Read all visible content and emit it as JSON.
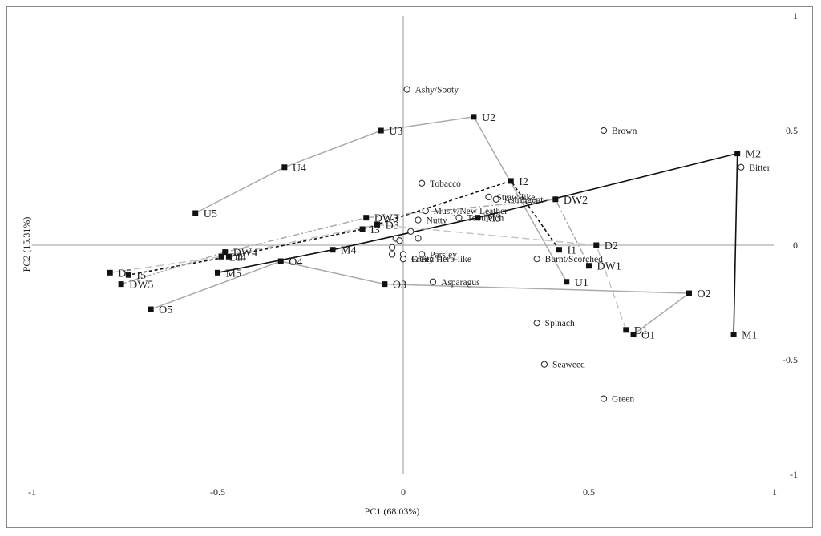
{
  "chart_data": {
    "type": "scatter",
    "title": "",
    "xlabel": "PC1 (68.03%)",
    "ylabel": "PC2 (15.31%)",
    "xlim": [
      -1,
      1
    ],
    "ylim": [
      -1,
      1
    ],
    "x_ticks": [
      "-1",
      "-0.5",
      "0",
      "0.5",
      "1"
    ],
    "y_ticks": [
      "1",
      "0.5",
      "0",
      "-0.5",
      "-1"
    ],
    "x_tick_values": [
      -1,
      -0.5,
      0,
      0.5,
      1
    ],
    "y_tick_values": [
      1,
      0.5,
      0,
      -0.5,
      -1
    ],
    "grid": false,
    "colors": {
      "axis": "#999999",
      "marker": "#111111",
      "gray_line": "#aaaaaa",
      "black_line": "#111111"
    },
    "attributes": [
      {
        "label": "Ashy/Sooty",
        "x": 0.01,
        "y": 0.68
      },
      {
        "label": "Brown",
        "x": 0.54,
        "y": 0.5
      },
      {
        "label": "Bitter",
        "x": 0.91,
        "y": 0.34
      },
      {
        "label": "Tobacco",
        "x": 0.05,
        "y": 0.27
      },
      {
        "label": "Straw-like",
        "x": 0.23,
        "y": 0.21
      },
      {
        "label": "Astringent",
        "x": 0.25,
        "y": 0.2
      },
      {
        "label": "Musty/New Leather",
        "x": 0.06,
        "y": 0.15
      },
      {
        "label": "Toothetch",
        "x": 0.15,
        "y": 0.12
      },
      {
        "label": "Nutty",
        "x": 0.04,
        "y": 0.11
      },
      {
        "label": "",
        "x": 0.02,
        "y": 0.06
      },
      {
        "label": "",
        "x": 0.04,
        "y": 0.03
      },
      {
        "label": "",
        "x": -0.02,
        "y": 0.03
      },
      {
        "label": "",
        "x": -0.01,
        "y": 0.02
      },
      {
        "label": "",
        "x": -0.03,
        "y": -0.01
      },
      {
        "label": "",
        "x": -0.03,
        "y": -0.04
      },
      {
        "label": "Parsley",
        "x": 0.05,
        "y": -0.04
      },
      {
        "label": "",
        "x": 0.0,
        "y": -0.04
      },
      {
        "label": "Green Herb-like",
        "x": 0.0,
        "y": -0.06
      },
      {
        "label": "Fruity",
        "x": 0.0,
        "y": -0.06
      },
      {
        "label": "Burnt/Scorched",
        "x": 0.36,
        "y": -0.06
      },
      {
        "label": "Asparagus",
        "x": 0.08,
        "y": -0.16
      },
      {
        "label": "Spinach",
        "x": 0.36,
        "y": -0.34
      },
      {
        "label": "Seaweed",
        "x": 0.38,
        "y": -0.52
      },
      {
        "label": "Green",
        "x": 0.54,
        "y": -0.67
      }
    ],
    "series": [
      {
        "name": "U",
        "style": "gray-solid",
        "points": [
          {
            "label": "U2",
            "x": 0.19,
            "y": 0.56
          },
          {
            "label": "U3",
            "x": -0.06,
            "y": 0.5
          },
          {
            "label": "U4",
            "x": -0.32,
            "y": 0.34
          },
          {
            "label": "U5",
            "x": -0.56,
            "y": 0.14
          },
          {
            "label": "U1",
            "x": 0.44,
            "y": -0.16
          }
        ],
        "path": [
          3,
          2,
          1,
          0,
          4
        ]
      },
      {
        "name": "M",
        "style": "black-solid",
        "points": [
          {
            "label": "M2",
            "x": 0.9,
            "y": 0.4
          },
          {
            "label": "M3",
            "x": 0.2,
            "y": 0.12
          },
          {
            "label": "M4",
            "x": -0.19,
            "y": -0.02
          },
          {
            "label": "M5",
            "x": -0.5,
            "y": -0.12
          },
          {
            "label": "M1",
            "x": 0.89,
            "y": -0.39
          }
        ],
        "path": [
          4,
          0,
          1,
          2,
          3
        ]
      },
      {
        "name": "O",
        "style": "gray-solid",
        "points": [
          {
            "label": "O2",
            "x": 0.77,
            "y": -0.21
          },
          {
            "label": "O1",
            "x": 0.62,
            "y": -0.39
          },
          {
            "label": "O3",
            "x": -0.05,
            "y": -0.17
          },
          {
            "label": "O4",
            "x": -0.33,
            "y": -0.07
          },
          {
            "label": "O5",
            "x": -0.68,
            "y": -0.28
          }
        ],
        "path": [
          1,
          0,
          2,
          3,
          4
        ]
      },
      {
        "name": "I",
        "style": "black-dashed",
        "points": [
          {
            "label": "I2",
            "x": 0.29,
            "y": 0.28
          },
          {
            "label": "I1",
            "x": 0.42,
            "y": -0.02
          },
          {
            "label": "I3",
            "x": -0.11,
            "y": 0.07
          },
          {
            "label": "I4",
            "x": -0.47,
            "y": -0.05
          },
          {
            "label": "I5",
            "x": -0.74,
            "y": -0.13
          }
        ],
        "path": [
          1,
          0,
          2,
          3,
          4
        ]
      },
      {
        "name": "DW",
        "style": "gray-dashdot",
        "points": [
          {
            "label": "DW2",
            "x": 0.41,
            "y": 0.2
          },
          {
            "label": "DW1",
            "x": 0.5,
            "y": -0.09
          },
          {
            "label": "DW3",
            "x": -0.1,
            "y": 0.12
          },
          {
            "label": "DW4",
            "x": -0.48,
            "y": -0.03
          },
          {
            "label": "DW5",
            "x": -0.76,
            "y": -0.17
          }
        ],
        "path": [
          1,
          0,
          2,
          3,
          4
        ]
      },
      {
        "name": "D",
        "style": "gray-dashed",
        "points": [
          {
            "label": "D2",
            "x": 0.52,
            "y": 0.0
          },
          {
            "label": "D1",
            "x": 0.6,
            "y": -0.37
          },
          {
            "label": "D3",
            "x": -0.07,
            "y": 0.09
          },
          {
            "label": "D4",
            "x": -0.49,
            "y": -0.05
          },
          {
            "label": "D5",
            "x": -0.79,
            "y": -0.12
          }
        ],
        "path": [
          1,
          0,
          2,
          3,
          4
        ]
      }
    ]
  }
}
